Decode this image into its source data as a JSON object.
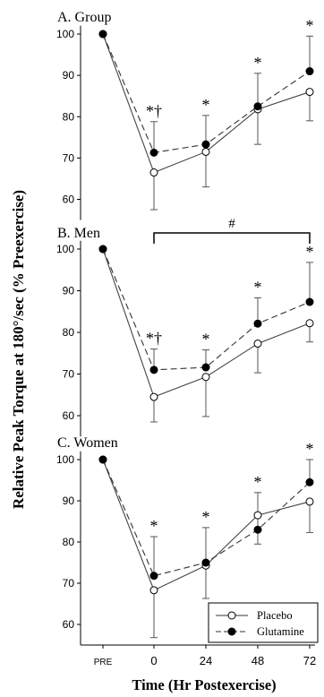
{
  "figure": {
    "ylabel": "Relative Peak Torque at 180°/sec (% Preexercise)",
    "xlabel": "Time (Hr Postexercise)"
  },
  "legend": {
    "placement": "bottom-right of panel C",
    "entries": [
      {
        "label": "Placebo",
        "marker": "open-circle",
        "line": "solid"
      },
      {
        "label": "Glutamine",
        "marker": "filled-circle",
        "line": "dashed"
      }
    ]
  },
  "chart_data": [
    {
      "type": "line",
      "title": "A. Group",
      "categories": [
        "PRE",
        "0",
        "24",
        "48",
        "72"
      ],
      "yticks": [
        60,
        70,
        80,
        90,
        100
      ],
      "ylim": [
        55,
        102
      ],
      "series": [
        {
          "name": "Placebo",
          "values": [
            100,
            66.5,
            71.5,
            81.8,
            86
          ],
          "error_up": [
            0,
            0,
            0,
            0,
            0
          ],
          "error_down": [
            0,
            9,
            8.5,
            8.5,
            7
          ]
        },
        {
          "name": "Glutamine",
          "values": [
            100,
            71.3,
            73.3,
            82.5,
            91
          ],
          "error_up": [
            0,
            7.5,
            7,
            8,
            8.5
          ],
          "error_down": [
            0,
            0,
            0,
            0,
            0
          ]
        }
      ],
      "annotations": [
        {
          "x": "0",
          "text": "*†"
        },
        {
          "x": "24",
          "text": "*"
        },
        {
          "x": "48",
          "text": "*"
        },
        {
          "x": "72",
          "text": "*"
        }
      ],
      "bracket": null,
      "grid": false
    },
    {
      "type": "line",
      "title": "B. Men",
      "categories": [
        "PRE",
        "0",
        "24",
        "48",
        "72"
      ],
      "yticks": [
        60,
        70,
        80,
        90,
        100
      ],
      "ylim": [
        55,
        102
      ],
      "series": [
        {
          "name": "Placebo",
          "values": [
            100,
            64.5,
            69.3,
            77.3,
            82.2
          ],
          "error_up": [
            0,
            0,
            0,
            0,
            0
          ],
          "error_down": [
            0,
            6,
            9.5,
            7,
            4.5
          ]
        },
        {
          "name": "Glutamine",
          "values": [
            100,
            71,
            71.6,
            82.1,
            87.3
          ],
          "error_up": [
            0,
            5,
            4.2,
            6.2,
            9.5
          ],
          "error_down": [
            0,
            0,
            0,
            0,
            0
          ]
        }
      ],
      "annotations": [
        {
          "x": "0",
          "text": "*†"
        },
        {
          "x": "24",
          "text": "*"
        },
        {
          "x": "48",
          "text": "*"
        },
        {
          "x": "72",
          "text": "*"
        }
      ],
      "bracket": {
        "from": "0",
        "to": "72",
        "text": "#"
      },
      "grid": false
    },
    {
      "type": "line",
      "title": "C. Women",
      "categories": [
        "PRE",
        "0",
        "24",
        "48",
        "72"
      ],
      "yticks": [
        60,
        70,
        80,
        90,
        100
      ],
      "ylim": [
        55,
        102
      ],
      "series": [
        {
          "name": "Placebo",
          "values": [
            100,
            68.3,
            74.3,
            86.5,
            89.8
          ],
          "error_up": [
            0,
            0,
            0,
            0,
            0
          ],
          "error_down": [
            0,
            11.5,
            8,
            7,
            7.5
          ]
        },
        {
          "name": "Glutamine",
          "values": [
            100,
            71.8,
            75,
            83,
            94.5
          ],
          "error_up": [
            0,
            9.5,
            8.5,
            9,
            5.5
          ],
          "error_down": [
            0,
            0,
            0,
            0,
            0
          ]
        }
      ],
      "annotations": [
        {
          "x": "0",
          "text": "*"
        },
        {
          "x": "24",
          "text": "*"
        },
        {
          "x": "48",
          "text": "*"
        },
        {
          "x": "72",
          "text": "*"
        }
      ],
      "bracket": null,
      "grid": false
    }
  ]
}
